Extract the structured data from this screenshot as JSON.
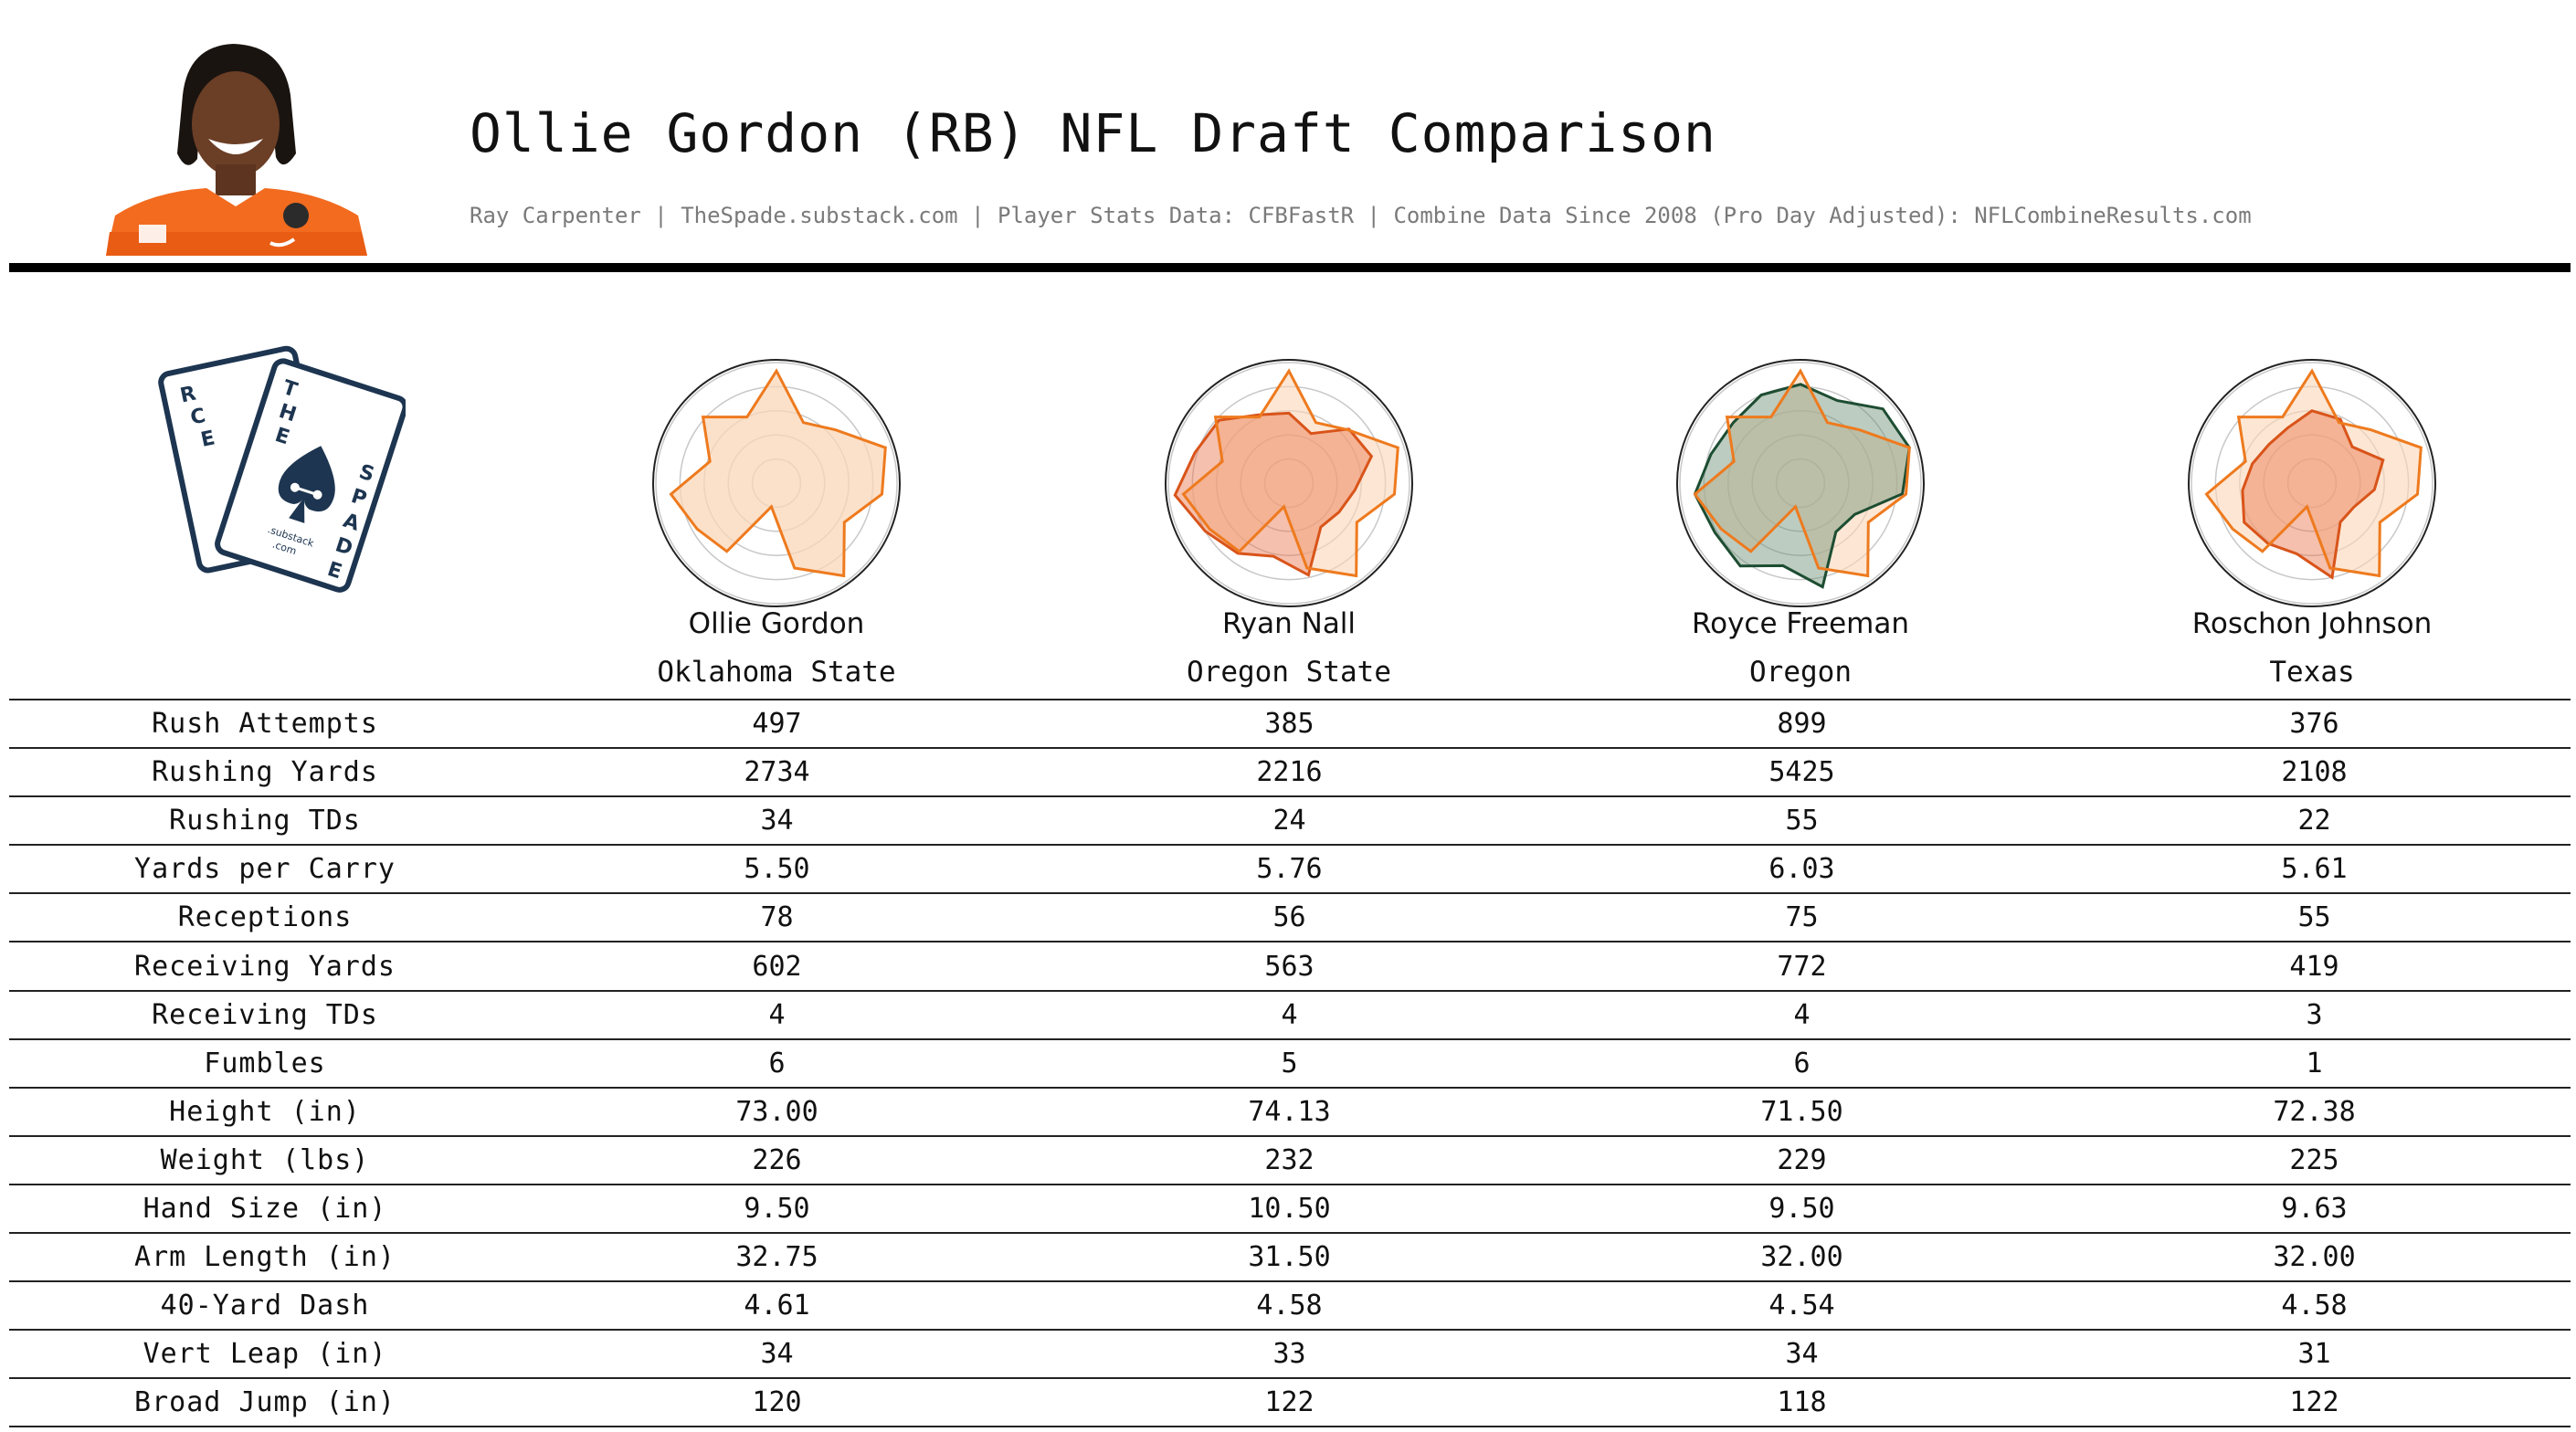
{
  "header": {
    "title": "Ollie Gordon (RB) NFL Draft Comparison",
    "subtitle": "Ray Carpenter | TheSpade.substack.com | Player Stats Data: CFBFastR | Combine Data Since 2008 (Pro Day Adjusted): NFLCombineResults.com"
  },
  "logo": {
    "card_back_letters": [
      "R",
      "C",
      "E"
    ],
    "card_front_letters_top": [
      "T",
      "H",
      "E"
    ],
    "card_front_letters_side": [
      "S",
      "P",
      "A",
      "D",
      "E"
    ],
    "card_caption_1": ".substack",
    "card_caption_2": ".com"
  },
  "colors": {
    "target_fill": "#fbd7b8",
    "target_line": "#ee7a1e",
    "comp_line": "#d9541a",
    "comp_fill": "#e8744a",
    "freeman_line": "#1d4d32",
    "freeman_fill": "#6b8f74",
    "rule": "#000000"
  },
  "players": [
    {
      "name": "Ollie Gordon",
      "school": "Oklahoma State"
    },
    {
      "name": "Ryan Nall",
      "school": "Oregon State"
    },
    {
      "name": "Royce Freeman",
      "school": "Oregon"
    },
    {
      "name": "Roschon Johnson",
      "school": "Texas"
    }
  ],
  "table": {
    "rows": [
      {
        "label": "Rush Attempts",
        "values": [
          "497",
          "385",
          "899",
          "376"
        ]
      },
      {
        "label": "Rushing Yards",
        "values": [
          "2734",
          "2216",
          "5425",
          "2108"
        ]
      },
      {
        "label": "Rushing TDs",
        "values": [
          "34",
          "24",
          "55",
          "22"
        ]
      },
      {
        "label": "Yards per Carry",
        "values": [
          "5.50",
          "5.76",
          "6.03",
          "5.61"
        ]
      },
      {
        "label": "Receptions",
        "values": [
          "78",
          "56",
          "75",
          "55"
        ]
      },
      {
        "label": "Receiving Yards",
        "values": [
          "602",
          "563",
          "772",
          "419"
        ]
      },
      {
        "label": "Receiving TDs",
        "values": [
          "4",
          "4",
          "4",
          "3"
        ]
      },
      {
        "label": "Fumbles",
        "values": [
          "6",
          "5",
          "6",
          "1"
        ]
      },
      {
        "label": "Height (in)",
        "values": [
          "73.00",
          "74.13",
          "71.50",
          "72.38"
        ]
      },
      {
        "label": "Weight (lbs)",
        "values": [
          "226",
          "232",
          "229",
          "225"
        ]
      },
      {
        "label": "Hand Size (in)",
        "values": [
          "9.50",
          "10.50",
          "9.50",
          "9.63"
        ]
      },
      {
        "label": "Arm Length (in)",
        "values": [
          "32.75",
          "31.50",
          "32.00",
          "32.00"
        ]
      },
      {
        "label": "40-Yard Dash",
        "values": [
          "4.61",
          "4.58",
          "4.54",
          "4.58"
        ]
      },
      {
        "label": "Vert Leap (in)",
        "values": [
          "34",
          "33",
          "34",
          "31"
        ]
      },
      {
        "label": "Broad Jump (in)",
        "values": [
          "120",
          "122",
          "118",
          "122"
        ]
      }
    ]
  },
  "chart_data": {
    "type": "radar",
    "axes_count": 15,
    "rlim": [
      0,
      1
    ],
    "ring_levels": [
      0.2,
      0.4,
      0.6,
      0.8,
      1.0
    ],
    "target": "Ollie Gordon",
    "series": [
      {
        "name": "Ollie Gordon",
        "values": [
          0.93,
          0.55,
          0.66,
          0.95,
          0.88,
          0.65,
          0.95,
          0.72,
          0.2,
          0.7,
          0.76,
          0.88,
          0.58,
          0.82,
          0.6
        ]
      },
      {
        "name": "Ryan Nall",
        "values": [
          0.58,
          0.45,
          0.67,
          0.72,
          0.55,
          0.48,
          0.45,
          0.78,
          0.62,
          0.72,
          0.8,
          0.95,
          0.82,
          0.78,
          0.62
        ]
      },
      {
        "name": "Royce Freeman",
        "values": [
          0.82,
          0.75,
          0.92,
          0.95,
          0.85,
          0.52,
          0.5,
          0.88,
          0.7,
          0.85,
          0.82,
          0.88,
          0.78,
          0.75,
          0.8
        ]
      },
      {
        "name": "Roschon Johnson",
        "values": [
          0.6,
          0.58,
          0.45,
          0.62,
          0.52,
          0.4,
          0.4,
          0.8,
          0.6,
          0.62,
          0.65,
          0.58,
          0.52,
          0.48,
          0.5
        ]
      }
    ]
  }
}
